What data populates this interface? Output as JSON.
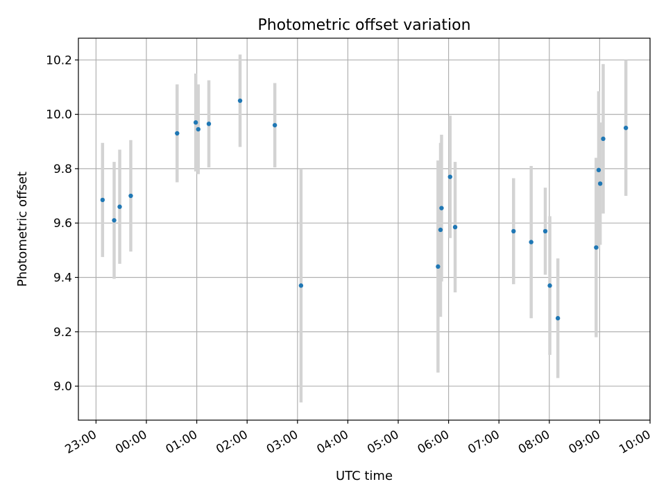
{
  "chart_data": {
    "type": "scatter",
    "title": "Photometric offset variation",
    "xlabel": "UTC time",
    "ylabel": "Photometric offset",
    "x_unit": "hours",
    "xlim": [
      -1.35,
      10.0
    ],
    "ylim": [
      8.875,
      10.28
    ],
    "grid": true,
    "x_ticks": [
      {
        "value": -1,
        "label": "23:00"
      },
      {
        "value": 0,
        "label": "00:00"
      },
      {
        "value": 1,
        "label": "01:00"
      },
      {
        "value": 2,
        "label": "02:00"
      },
      {
        "value": 3,
        "label": "03:00"
      },
      {
        "value": 4,
        "label": "04:00"
      },
      {
        "value": 5,
        "label": "05:00"
      },
      {
        "value": 6,
        "label": "06:00"
      },
      {
        "value": 7,
        "label": "07:00"
      },
      {
        "value": 8,
        "label": "08:00"
      },
      {
        "value": 9,
        "label": "09:00"
      },
      {
        "value": 10,
        "label": "10:00"
      }
    ],
    "y_ticks": [
      {
        "value": 9.0,
        "label": "9.0"
      },
      {
        "value": 9.2,
        "label": "9.2"
      },
      {
        "value": 9.4,
        "label": "9.4"
      },
      {
        "value": 9.6,
        "label": "9.6"
      },
      {
        "value": 9.8,
        "label": "9.8"
      },
      {
        "value": 10.0,
        "label": "10.0"
      },
      {
        "value": 10.2,
        "label": "10.2"
      }
    ],
    "marker_color": "#1f77b4",
    "errorbar_color": "#d3d3d3",
    "points": [
      {
        "x": -0.87,
        "y": 9.685,
        "err": 0.21
      },
      {
        "x": -0.64,
        "y": 9.61,
        "err": 0.215
      },
      {
        "x": -0.53,
        "y": 9.66,
        "err": 0.21
      },
      {
        "x": -0.31,
        "y": 9.7,
        "err": 0.205
      },
      {
        "x": 0.61,
        "y": 9.93,
        "err": 0.18
      },
      {
        "x": 0.98,
        "y": 9.97,
        "err": 0.18
      },
      {
        "x": 1.03,
        "y": 9.945,
        "err": 0.165
      },
      {
        "x": 1.24,
        "y": 9.965,
        "err": 0.16
      },
      {
        "x": 1.86,
        "y": 10.05,
        "err": 0.17
      },
      {
        "x": 2.55,
        "y": 9.96,
        "err": 0.155
      },
      {
        "x": 3.07,
        "y": 9.37,
        "err": 0.43
      },
      {
        "x": 5.79,
        "y": 9.44,
        "err": 0.39
      },
      {
        "x": 5.84,
        "y": 9.575,
        "err": 0.32
      },
      {
        "x": 5.86,
        "y": 9.655,
        "err": 0.27
      },
      {
        "x": 6.03,
        "y": 9.77,
        "err": 0.225
      },
      {
        "x": 6.13,
        "y": 9.585,
        "err": 0.24
      },
      {
        "x": 7.29,
        "y": 9.57,
        "err": 0.195
      },
      {
        "x": 7.64,
        "y": 9.53,
        "err": 0.28
      },
      {
        "x": 7.92,
        "y": 9.57,
        "err": 0.16
      },
      {
        "x": 8.01,
        "y": 9.37,
        "err": 0.255
      },
      {
        "x": 8.17,
        "y": 9.25,
        "err": 0.22
      },
      {
        "x": 8.93,
        "y": 9.51,
        "err": 0.33
      },
      {
        "x": 8.98,
        "y": 9.795,
        "err": 0.29
      },
      {
        "x": 9.01,
        "y": 9.745,
        "err": 0.225
      },
      {
        "x": 9.07,
        "y": 9.91,
        "err": 0.275
      },
      {
        "x": 9.52,
        "y": 9.95,
        "err": 0.25
      }
    ]
  }
}
